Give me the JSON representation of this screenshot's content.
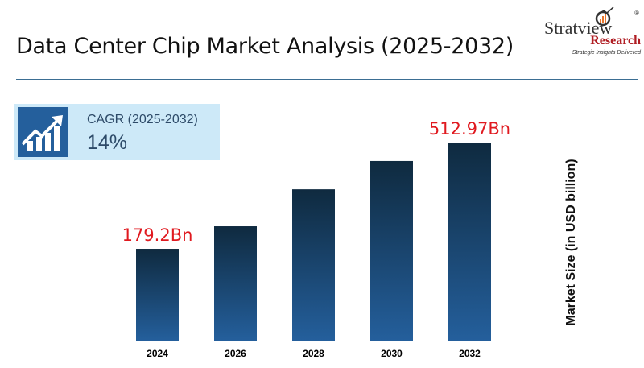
{
  "title": "Data Center Chip Market Analysis (2025-2032)",
  "logo": {
    "brand": "Stratview",
    "sub": "Research",
    "tagline": "Strategic Insights Delivered",
    "reg": "®"
  },
  "cagr": {
    "label": "CAGR (2025-2032)",
    "value": "14%",
    "icon": "growth-chart-icon"
  },
  "colors": {
    "bar_top": "#0f2a3f",
    "bar_bottom": "#245f9c",
    "data_label": "#e0191f",
    "accent": "#245f9c"
  },
  "chart_data": {
    "type": "bar",
    "categories": [
      "2024",
      "2026",
      "2028",
      "2030",
      "2032"
    ],
    "values": [
      179.2,
      250,
      366,
      455,
      512.97
    ],
    "data_labels": [
      "179.2Bn",
      "",
      "",
      "",
      "512.97Bn"
    ],
    "xlabel": "",
    "ylabel": "Market Size (in USD billion)",
    "grid": false
  }
}
